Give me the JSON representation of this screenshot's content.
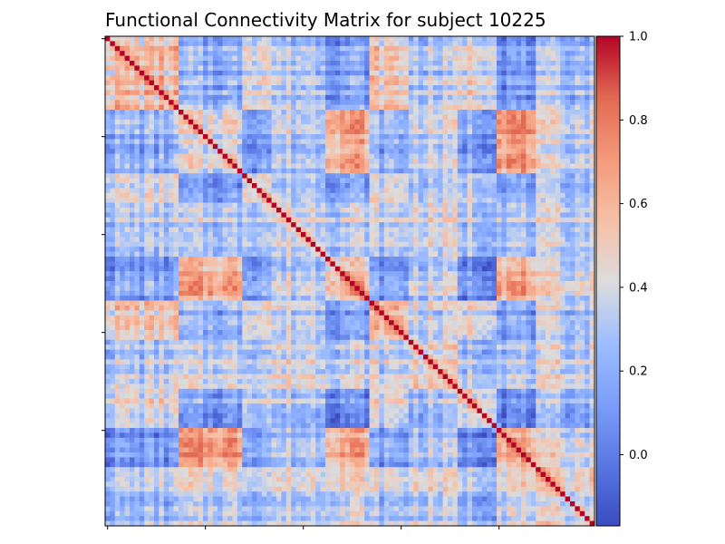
{
  "chart_data": {
    "type": "heatmap",
    "title": "Functional Connectivity Matrix for subject 10225",
    "xlabel": "",
    "ylabel": "",
    "matrix_size": 100,
    "x_tick_labels": [
      "",
      "",
      "",
      "",
      "",
      ""
    ],
    "y_tick_labels": [
      "",
      "",
      "",
      "",
      "",
      ""
    ],
    "color_scale": {
      "colormap": "coolwarm",
      "vmin": -0.17,
      "vmax": 1.0,
      "ticks": [
        0.0,
        0.2,
        0.4,
        0.6,
        0.8,
        1.0
      ],
      "tick_labels": [
        "0.0",
        "0.2",
        "0.4",
        "0.6",
        "0.8",
        "1.0"
      ]
    },
    "diagonal_value": 1.0,
    "block_structure": {
      "regions": [
        {
          "start": 0,
          "end": 15,
          "level": 0.55
        },
        {
          "start": 15,
          "end": 28,
          "level": 0.15
        },
        {
          "start": 28,
          "end": 34,
          "level": 0.48
        },
        {
          "start": 34,
          "end": 45,
          "level": 0.22
        },
        {
          "start": 45,
          "end": 54,
          "level": 0.05
        },
        {
          "start": 54,
          "end": 62,
          "level": 0.45
        },
        {
          "start": 62,
          "end": 72,
          "level": 0.3
        },
        {
          "start": 72,
          "end": 80,
          "level": 0.35
        },
        {
          "start": 80,
          "end": 88,
          "level": 0.12
        },
        {
          "start": 88,
          "end": 100,
          "level": 0.25
        }
      ],
      "cross_block_levels": [
        [
          0.55,
          0.2,
          0.45,
          0.3,
          0.15,
          0.5,
          0.3,
          0.45,
          0.1,
          0.25
        ],
        [
          0.2,
          0.4,
          0.15,
          0.3,
          0.65,
          0.2,
          0.35,
          0.15,
          0.7,
          0.35
        ],
        [
          0.45,
          0.15,
          0.5,
          0.35,
          0.2,
          0.45,
          0.35,
          0.4,
          0.2,
          0.3
        ],
        [
          0.3,
          0.3,
          0.35,
          0.4,
          0.35,
          0.35,
          0.4,
          0.3,
          0.3,
          0.35
        ],
        [
          0.15,
          0.65,
          0.2,
          0.35,
          0.6,
          0.15,
          0.35,
          0.1,
          0.65,
          0.4
        ],
        [
          0.5,
          0.2,
          0.45,
          0.35,
          0.15,
          0.55,
          0.35,
          0.45,
          0.15,
          0.3
        ],
        [
          0.3,
          0.35,
          0.35,
          0.4,
          0.35,
          0.35,
          0.45,
          0.3,
          0.3,
          0.35
        ],
        [
          0.45,
          0.15,
          0.4,
          0.3,
          0.1,
          0.45,
          0.3,
          0.5,
          0.1,
          0.25
        ],
        [
          0.1,
          0.7,
          0.2,
          0.3,
          0.65,
          0.15,
          0.3,
          0.1,
          0.6,
          0.4
        ],
        [
          0.25,
          0.35,
          0.3,
          0.35,
          0.4,
          0.3,
          0.35,
          0.25,
          0.4,
          0.4
        ]
      ]
    },
    "grid": false,
    "legend": "colorbar-right"
  }
}
